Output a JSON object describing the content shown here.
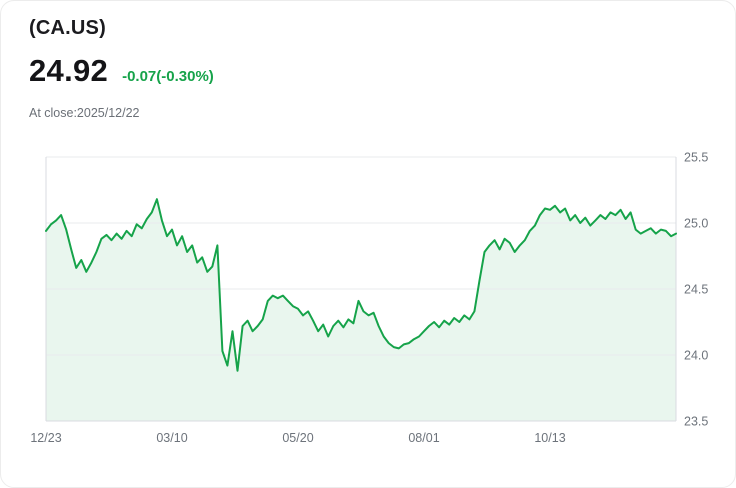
{
  "header": {
    "ticker": "(CA.US)",
    "price": "24.92",
    "change": "-0.07(-0.30%)",
    "at_close": "At close:2025/12/22"
  },
  "colors": {
    "accent_green": "#16a34a",
    "area_fill": "#e9f6ee",
    "grid": "#e9ebee",
    "axis": "#d9dbe0",
    "tick_text": "#6d737b"
  },
  "chart_data": {
    "type": "area",
    "title": "(CA.US) price history",
    "x_tick_labels": [
      "12/23",
      "03/10",
      "05/20",
      "08/01",
      "10/13"
    ],
    "x_tick_indices": [
      0,
      25,
      50,
      75,
      100
    ],
    "y_ticks": [
      23.5,
      24.0,
      24.5,
      25.0,
      25.5
    ],
    "ylim": [
      23.5,
      25.5
    ],
    "grid": true,
    "legend": false,
    "values": [
      24.94,
      24.99,
      25.02,
      25.06,
      24.95,
      24.8,
      24.66,
      24.72,
      24.63,
      24.7,
      24.78,
      24.88,
      24.91,
      24.87,
      24.92,
      24.88,
      24.94,
      24.9,
      24.99,
      24.96,
      25.03,
      25.08,
      25.18,
      25.02,
      24.9,
      24.95,
      24.83,
      24.9,
      24.78,
      24.83,
      24.7,
      24.74,
      24.63,
      24.67,
      24.83,
      24.03,
      23.92,
      24.18,
      23.88,
      24.22,
      24.26,
      24.18,
      24.22,
      24.27,
      24.41,
      24.45,
      24.43,
      24.45,
      24.41,
      24.37,
      24.35,
      24.3,
      24.33,
      24.26,
      24.18,
      24.23,
      24.14,
      24.22,
      24.26,
      24.21,
      24.27,
      24.24,
      24.41,
      24.33,
      24.3,
      24.32,
      24.22,
      24.14,
      24.09,
      24.06,
      24.05,
      24.08,
      24.09,
      24.12,
      24.14,
      24.18,
      24.22,
      24.25,
      24.21,
      24.26,
      24.23,
      24.28,
      24.25,
      24.3,
      24.27,
      24.33,
      24.56,
      24.78,
      24.83,
      24.87,
      24.8,
      24.88,
      24.85,
      24.78,
      24.83,
      24.87,
      24.94,
      24.98,
      25.06,
      25.11,
      25.1,
      25.13,
      25.08,
      25.11,
      25.02,
      25.06,
      25.0,
      25.04,
      24.98,
      25.02,
      25.06,
      25.03,
      25.08,
      25.06,
      25.1,
      25.03,
      25.08,
      24.95,
      24.92,
      24.94,
      24.96,
      24.92,
      24.95,
      24.94,
      24.9,
      24.92
    ]
  }
}
